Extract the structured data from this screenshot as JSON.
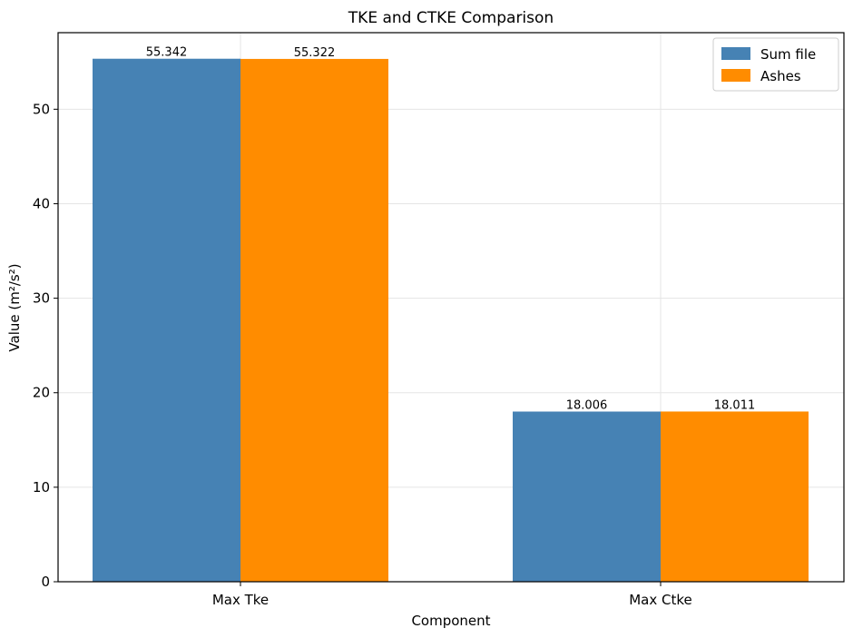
{
  "chart_data": {
    "type": "bar",
    "title": "TKE and CTKE Comparison",
    "xlabel": "Component",
    "ylabel": "Value (m²/s²)",
    "categories": [
      "Max Tke",
      "Max Ctke"
    ],
    "series": [
      {
        "name": "Sum file",
        "color": "#4682b4",
        "values": [
          55.342,
          18.006
        ],
        "labels": [
          "55.342",
          "18.006"
        ]
      },
      {
        "name": "Ashes",
        "color": "#ff8c00",
        "values": [
          55.322,
          18.011
        ],
        "labels": [
          "55.322",
          "18.011"
        ]
      }
    ],
    "ylim": [
      0,
      58.1
    ],
    "yticks": [
      0,
      10,
      20,
      30,
      40,
      50
    ],
    "grid": true,
    "legend_position": "top-right"
  }
}
